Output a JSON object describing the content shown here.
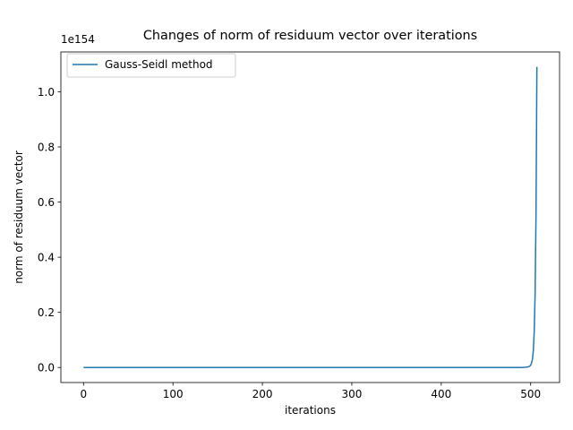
{
  "chart_data": {
    "type": "line",
    "title": "Changes of norm of residuum vector over iterations",
    "xlabel": "iterations",
    "ylabel": "norm of residuum vector",
    "y_offset_text": "1e154",
    "xlim": [
      -25.35,
      532.35
    ],
    "ylim": [
      -0.0545,
      1.1445
    ],
    "x_ticks": [
      0,
      100,
      200,
      300,
      400,
      500
    ],
    "x_tick_labels": [
      "0",
      "100",
      "200",
      "300",
      "400",
      "500"
    ],
    "y_ticks": [
      0.0,
      0.2,
      0.4,
      0.6,
      0.8,
      1.0
    ],
    "y_tick_labels": [
      "0.0",
      "0.2",
      "0.4",
      "0.6",
      "0.8",
      "1.0"
    ],
    "grid": false,
    "legend_position": "top-left",
    "y_unit_scale": "1e154",
    "series": [
      {
        "name": "Gauss-Seidl method",
        "color": "#1f77b4",
        "x": [
          0,
          100,
          200,
          300,
          400,
          480,
          490,
          495,
          498,
          500,
          501,
          502,
          503,
          504,
          505,
          506,
          507
        ],
        "y": [
          0.0,
          0.0,
          0.0,
          0.0,
          0.0,
          0.0,
          0.0,
          0.001,
          0.003,
          0.008,
          0.016,
          0.03,
          0.06,
          0.13,
          0.27,
          0.55,
          1.09
        ]
      }
    ]
  }
}
